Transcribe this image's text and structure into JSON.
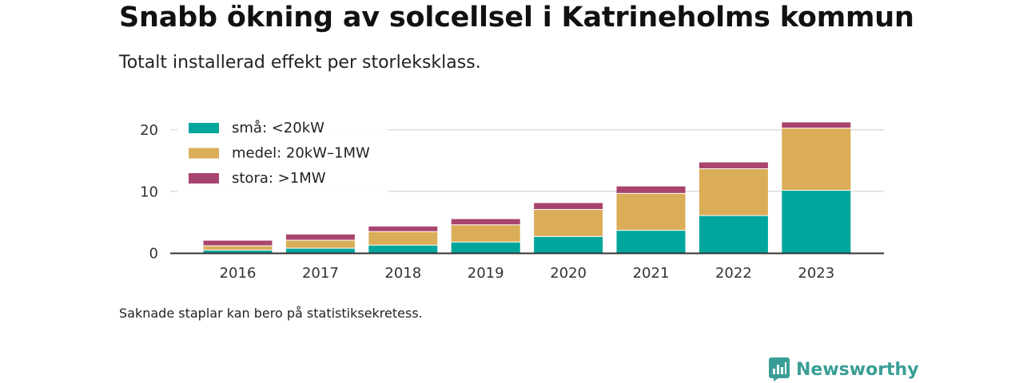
{
  "title": "Snabb ökning av solcellsel i Katrineholms kommun",
  "subtitle": "Totalt installerad effekt per storleksklass.",
  "footnote": "Saknade staplar kan bero på statistiksekretess.",
  "brand": {
    "name": "Newsworthy",
    "icon": "newsworthy-logo-icon",
    "color": "#3a9e96"
  },
  "chart_data": {
    "type": "bar",
    "stacked": true,
    "categories": [
      "2016",
      "2017",
      "2018",
      "2019",
      "2020",
      "2021",
      "2022",
      "2023"
    ],
    "series": [
      {
        "name": "små: <20kW",
        "color": "#00a69c",
        "values": [
          0.4,
          0.7,
          1.2,
          1.7,
          2.6,
          3.6,
          6.0,
          10.1
        ]
      },
      {
        "name": "medel: 20kW–1MW",
        "color": "#dbad59",
        "values": [
          0.7,
          1.3,
          2.2,
          2.8,
          4.4,
          6.0,
          7.6,
          10.1
        ]
      },
      {
        "name": "stora: >1MW",
        "color": "#a8456e",
        "values": [
          0.9,
          1.0,
          0.9,
          1.0,
          1.1,
          1.2,
          1.1,
          1.0
        ]
      }
    ],
    "ylim": [
      0,
      21.5
    ],
    "yticks": [
      0,
      10,
      20
    ],
    "xlabel": "",
    "ylabel": "",
    "grid": "horizontal",
    "legend": "top-left"
  }
}
